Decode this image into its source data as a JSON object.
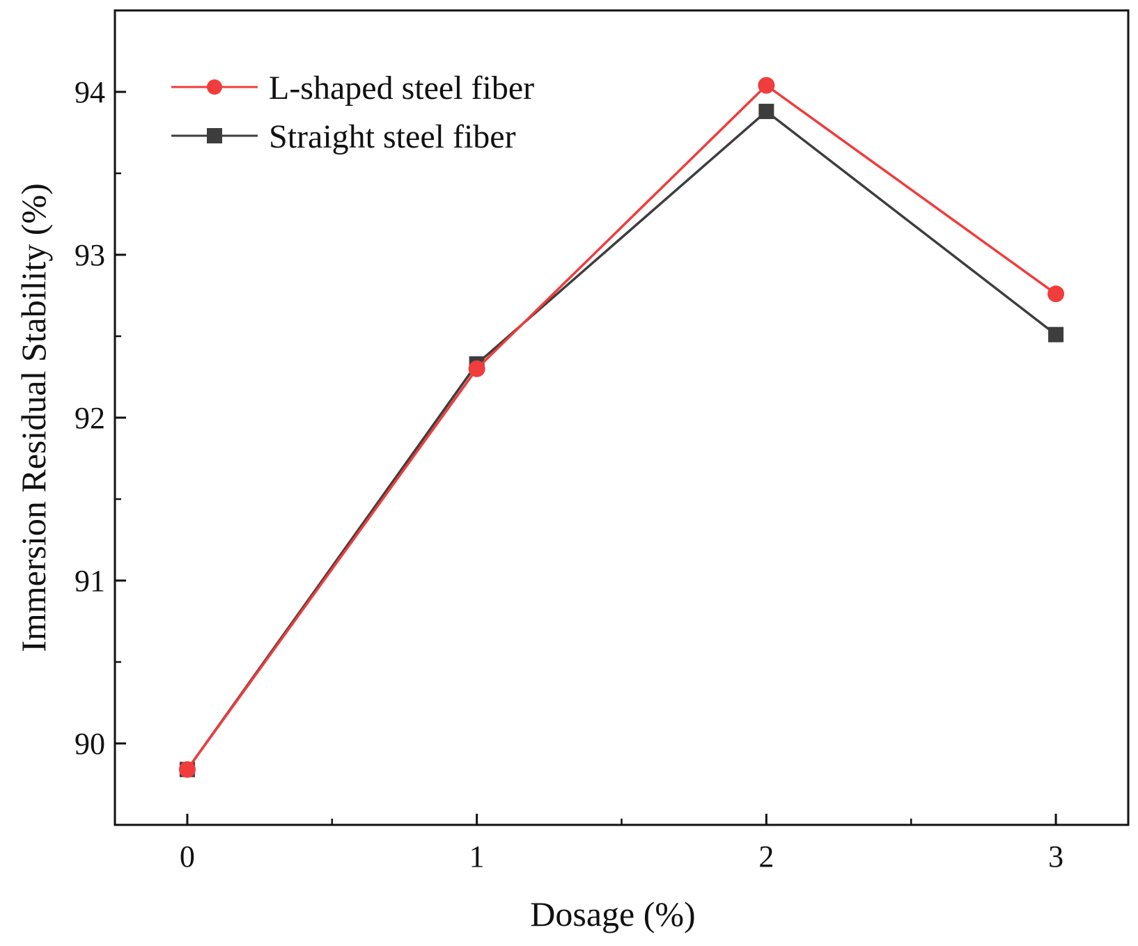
{
  "chart_data": {
    "type": "line",
    "title": "",
    "xlabel": "Dosage (%)",
    "ylabel": "Immersion Residual Stability (%)",
    "x": [
      0,
      1,
      2,
      3
    ],
    "xticks": [
      "0",
      "1",
      "2",
      "3"
    ],
    "xlim": [
      -0.25,
      3.25
    ],
    "ylim": [
      89.5,
      94.5
    ],
    "yticks": [
      "90",
      "91",
      "92",
      "93",
      "94"
    ],
    "grid": false,
    "legend_position": "top-left",
    "series": [
      {
        "name": "L-shaped steel fiber",
        "values": [
          89.84,
          92.3,
          94.04,
          92.76
        ],
        "color": "#f03c3c",
        "marker": "circle"
      },
      {
        "name": "Straight steel fiber",
        "values": [
          89.84,
          92.33,
          93.88,
          92.51
        ],
        "color": "#3d3d3d",
        "marker": "square"
      }
    ]
  }
}
